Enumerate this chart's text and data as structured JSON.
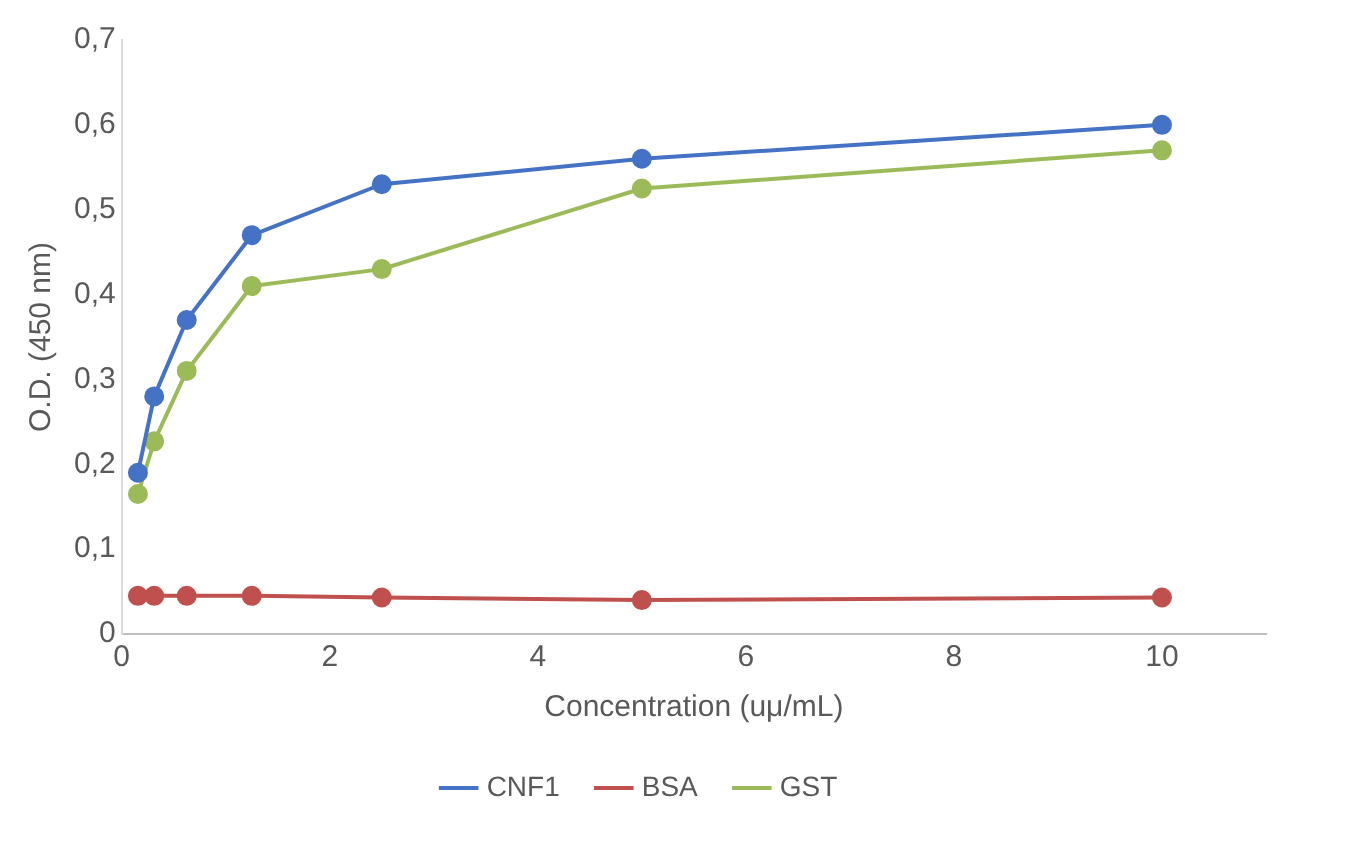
{
  "chart_data": {
    "type": "line",
    "xlabel": "Concentration (uμ/mL)",
    "ylabel": "O.D. (450 nm)",
    "x": [
      0.156,
      0.3125,
      0.625,
      1.25,
      2.5,
      5,
      10
    ],
    "series": [
      {
        "name": "CNF1",
        "color": "#4472c4",
        "values": [
          0.19,
          0.28,
          0.37,
          0.47,
          0.53,
          0.56,
          0.6
        ]
      },
      {
        "name": "BSA",
        "color": "#c0504d",
        "values": [
          0.045,
          0.045,
          0.045,
          0.045,
          0.043,
          0.04,
          0.043
        ]
      },
      {
        "name": "GST",
        "color": "#9bbb59",
        "values": [
          0.165,
          0.227,
          0.31,
          0.41,
          0.43,
          0.525,
          0.57
        ]
      }
    ],
    "xlim": [
      0,
      11
    ],
    "xticks": [
      0,
      2,
      4,
      6,
      8,
      10
    ],
    "ylim": [
      0,
      0.7
    ],
    "yticks": [
      {
        "value": 0,
        "label": "0"
      },
      {
        "value": 0.1,
        "label": "0,1"
      },
      {
        "value": 0.2,
        "label": "0,2"
      },
      {
        "value": 0.3,
        "label": "0,3"
      },
      {
        "value": 0.4,
        "label": "0,4"
      },
      {
        "value": 0.5,
        "label": "0,5"
      },
      {
        "value": 0.6,
        "label": "0,6"
      },
      {
        "value": 0.7,
        "label": "0,7"
      }
    ],
    "grid": false,
    "legend": "bottom",
    "marker": "circle",
    "line_style": "solid"
  }
}
